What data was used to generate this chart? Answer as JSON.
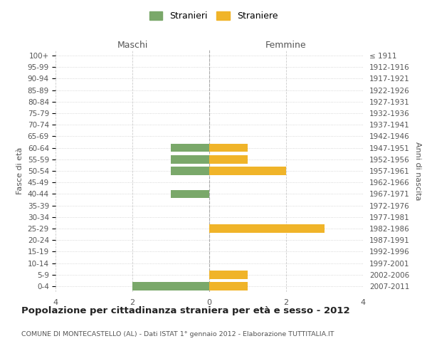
{
  "age_groups": [
    "100+",
    "95-99",
    "90-94",
    "85-89",
    "80-84",
    "75-79",
    "70-74",
    "65-69",
    "60-64",
    "55-59",
    "50-54",
    "45-49",
    "40-44",
    "35-39",
    "30-34",
    "25-29",
    "20-24",
    "15-19",
    "10-14",
    "5-9",
    "0-4"
  ],
  "birth_years": [
    "≤ 1911",
    "1912-1916",
    "1917-1921",
    "1922-1926",
    "1927-1931",
    "1932-1936",
    "1937-1941",
    "1942-1946",
    "1947-1951",
    "1952-1956",
    "1957-1961",
    "1962-1966",
    "1967-1971",
    "1972-1976",
    "1977-1981",
    "1982-1986",
    "1987-1991",
    "1992-1996",
    "1997-2001",
    "2002-2006",
    "2007-2011"
  ],
  "maschi_stranieri": [
    0,
    0,
    0,
    0,
    0,
    0,
    0,
    0,
    1,
    1,
    1,
    0,
    1,
    0,
    0,
    0,
    0,
    0,
    0,
    0,
    2
  ],
  "femmine_straniere": [
    0,
    0,
    0,
    0,
    0,
    0,
    0,
    0,
    1,
    1,
    2,
    0,
    0,
    0,
    0,
    3,
    0,
    0,
    0,
    1,
    1
  ],
  "color_maschi": "#7aA86A",
  "color_femmine": "#F0B429",
  "title": "Popolazione per cittadinanza straniera per età e sesso - 2012",
  "subtitle": "COMUNE DI MONTECASTELLO (AL) - Dati ISTAT 1° gennaio 2012 - Elaborazione TUTTITALIA.IT",
  "xlabel_maschi": "Maschi",
  "xlabel_femmine": "Femmine",
  "ylabel_left": "Fasce di età",
  "ylabel_right": "Anni di nascita",
  "legend_maschi": "Stranieri",
  "legend_femmine": "Straniere",
  "xlim": 4,
  "bg_color": "#ffffff",
  "grid_color": "#cccccc",
  "bar_height": 0.72
}
